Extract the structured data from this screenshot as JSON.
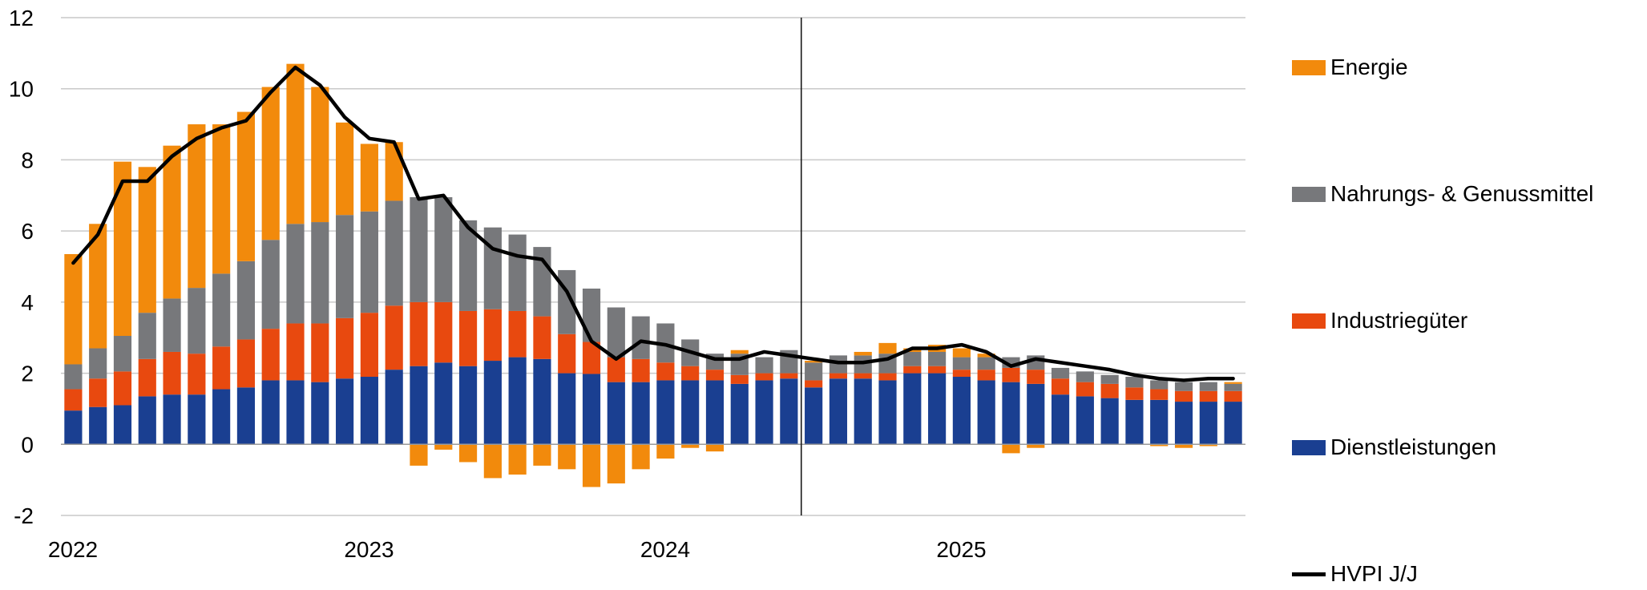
{
  "chart_data": {
    "type": "bar",
    "subtype": "stacked-bar-with-line",
    "title": "",
    "xlabel": "",
    "ylabel": "",
    "ylim": [
      -2,
      12
    ],
    "yticks": [
      -2,
      0,
      2,
      4,
      6,
      8,
      10,
      12
    ],
    "x_year_labels": [
      "2022",
      "2023",
      "2024",
      "2025"
    ],
    "grid": "horizontal",
    "legend_position": "right",
    "vertical_marker_after_period": 30,
    "colors": {
      "Dienstleistungen": "#1a3f91",
      "Industriegüter": "#e8490f",
      "Nahrungs- & Genussmittel": "#77787b",
      "Energie": "#f28a0c",
      "HVPI J/J": "#000000",
      "grid": "#c9c9c9"
    },
    "months": [
      "2022-01",
      "2022-02",
      "2022-03",
      "2022-04",
      "2022-05",
      "2022-06",
      "2022-07",
      "2022-08",
      "2022-09",
      "2022-10",
      "2022-11",
      "2022-12",
      "2023-01",
      "2023-02",
      "2023-03",
      "2023-04",
      "2023-05",
      "2023-06",
      "2023-07",
      "2023-08",
      "2023-09",
      "2023-10",
      "2023-11",
      "2023-12",
      "2024-01",
      "2024-02",
      "2024-03",
      "2024-04",
      "2024-05",
      "2024-06",
      "2024-07",
      "2024-08",
      "2024-09",
      "2024-10",
      "2024-11",
      "2024-12",
      "2025-01",
      "2025-02",
      "2025-03",
      "2025-04",
      "2025-05",
      "2025-06",
      "2025-07",
      "2025-08",
      "2025-09",
      "2025-10",
      "2025-11",
      "2025-12"
    ],
    "series": [
      {
        "name": "Dienstleistungen",
        "kind": "bar",
        "values": [
          0.95,
          1.05,
          1.1,
          1.35,
          1.4,
          1.4,
          1.55,
          1.6,
          1.8,
          1.8,
          1.75,
          1.85,
          1.9,
          2.1,
          2.2,
          2.3,
          2.2,
          2.35,
          2.45,
          2.4,
          2.0,
          1.98,
          1.75,
          1.75,
          1.8,
          1.8,
          1.8,
          1.7,
          1.8,
          1.85,
          1.6,
          1.85,
          1.85,
          1.8,
          2.0,
          2.0,
          1.9,
          1.8,
          1.75,
          1.7,
          1.4,
          1.35,
          1.3,
          1.25,
          1.25,
          1.2,
          1.2,
          1.2
        ]
      },
      {
        "name": "Industriegüter",
        "kind": "bar",
        "values": [
          0.6,
          0.8,
          0.95,
          1.05,
          1.2,
          1.15,
          1.2,
          1.35,
          1.45,
          1.6,
          1.65,
          1.7,
          1.8,
          1.8,
          1.8,
          1.7,
          1.55,
          1.45,
          1.3,
          1.2,
          1.1,
          0.9,
          0.7,
          0.65,
          0.5,
          0.4,
          0.3,
          0.25,
          0.2,
          0.15,
          0.2,
          0.15,
          0.15,
          0.2,
          0.2,
          0.2,
          0.2,
          0.3,
          0.4,
          0.4,
          0.45,
          0.4,
          0.4,
          0.35,
          0.3,
          0.3,
          0.3,
          0.3
        ]
      },
      {
        "name": "Nahrungs- & Genussmittel",
        "kind": "bar",
        "values": [
          0.7,
          0.85,
          1.0,
          1.3,
          1.5,
          1.85,
          2.05,
          2.2,
          2.5,
          2.8,
          2.85,
          2.9,
          2.85,
          2.95,
          2.95,
          2.95,
          2.55,
          2.3,
          2.15,
          1.95,
          1.8,
          1.5,
          1.4,
          1.2,
          1.1,
          0.75,
          0.45,
          0.6,
          0.45,
          0.65,
          0.5,
          0.5,
          0.5,
          0.55,
          0.4,
          0.4,
          0.35,
          0.35,
          0.3,
          0.4,
          0.3,
          0.3,
          0.25,
          0.3,
          0.25,
          0.25,
          0.25,
          0.2
        ]
      },
      {
        "name": "Energie",
        "kind": "bar",
        "values": [
          3.1,
          3.5,
          4.9,
          4.1,
          4.3,
          4.6,
          4.2,
          4.2,
          4.3,
          4.5,
          3.8,
          2.6,
          1.9,
          1.65,
          -0.6,
          -0.15,
          -0.5,
          -0.95,
          -0.85,
          -0.6,
          -0.7,
          -1.2,
          -1.1,
          -0.7,
          -0.4,
          -0.1,
          -0.2,
          0.1,
          0.0,
          0.0,
          0.05,
          0.0,
          0.1,
          0.3,
          0.1,
          0.2,
          0.25,
          0.1,
          -0.25,
          -0.1,
          0.0,
          0.0,
          0.0,
          0.0,
          -0.05,
          -0.1,
          -0.05,
          0.05
        ]
      },
      {
        "name": "HVPI J/J",
        "kind": "line",
        "values": [
          5.1,
          5.9,
          7.4,
          7.4,
          8.1,
          8.6,
          8.9,
          9.1,
          9.9,
          10.6,
          10.1,
          9.2,
          8.6,
          8.5,
          6.9,
          7.0,
          6.1,
          5.5,
          5.3,
          5.2,
          4.3,
          2.9,
          2.4,
          2.9,
          2.8,
          2.6,
          2.4,
          2.4,
          2.6,
          2.5,
          2.4,
          2.3,
          2.3,
          2.4,
          2.7,
          2.7,
          2.8,
          2.6,
          2.2,
          2.4,
          2.3,
          2.2,
          2.1,
          1.95,
          1.85,
          1.8,
          1.85,
          1.85
        ]
      }
    ]
  },
  "legend": {
    "items": [
      {
        "label": "Energie",
        "key": "Energie"
      },
      {
        "label": "Nahrungs- & Genussmittel",
        "key": "Nahrungs- & Genussmittel"
      },
      {
        "label": "Industriegüter",
        "key": "Industriegüter"
      },
      {
        "label": "Dienstleistungen",
        "key": "Dienstleistungen"
      },
      {
        "label": "HVPI J/J",
        "key": "HVPI J/J"
      }
    ]
  }
}
